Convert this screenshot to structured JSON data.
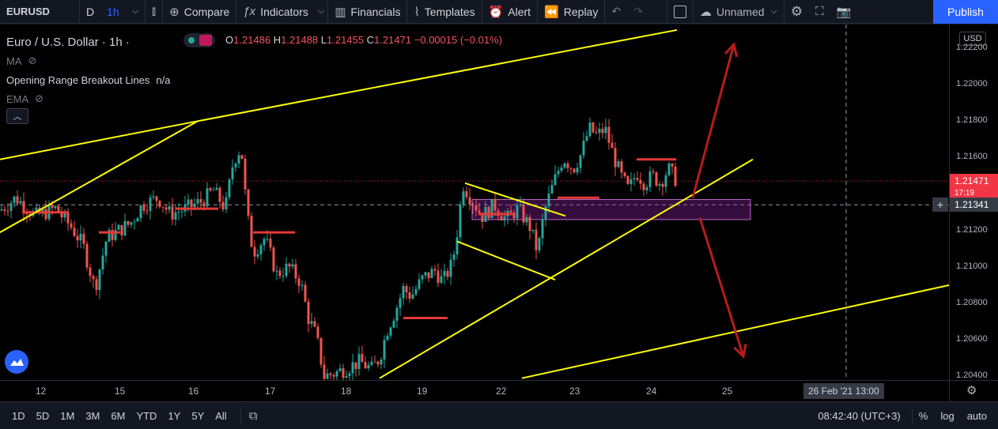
{
  "toolbar": {
    "symbol": "EURUSD",
    "interval_d": "D",
    "interval_1h": "1h",
    "compare": "Compare",
    "indicators": "Indicators",
    "financials": "Financials",
    "templates": "Templates",
    "alert": "Alert",
    "replay": "Replay",
    "layout_name": "Unnamed",
    "publish": "Publish"
  },
  "legend": {
    "title": "Euro / U.S. Dollar · 1h ·",
    "open_label": "O",
    "open": "1.21486",
    "high_label": "H",
    "high": "1.21488",
    "low_label": "L",
    "low": "1.21455",
    "close_label": "C",
    "close": "1.21471",
    "change": "−0.00015 (−0.01%)",
    "ma": "MA",
    "orb": "Opening Range Breakout Lines",
    "orb_value": "n/a",
    "ema": "EMA"
  },
  "price_axis": {
    "currency": "USD",
    "labels": [
      "1.22200",
      "1.22000",
      "1.21800",
      "1.21600",
      "1.21200",
      "1.21000",
      "1.20800",
      "1.20600",
      "1.20400"
    ],
    "current_price": "1.21471",
    "countdown": "17:19",
    "crosshair_price": "1.21341"
  },
  "time_axis": {
    "labels": [
      "12",
      "15",
      "16",
      "17",
      "18",
      "19",
      "22",
      "23",
      "24",
      "25"
    ],
    "crosshair_time": "26 Feb '21   13:00"
  },
  "bottombar": {
    "ranges": [
      "1D",
      "5D",
      "1M",
      "3M",
      "6M",
      "YTD",
      "1Y",
      "5Y",
      "All"
    ],
    "clock": "08:42:40 (UTC+3)",
    "percent": "%",
    "log": "log",
    "auto": "auto"
  },
  "colors": {
    "up": "#26a69a",
    "down": "#ef5350",
    "trendline": "#ffff00",
    "arrow": "#b71c1c",
    "level": "#e53935",
    "zone": "#9c27b0"
  },
  "chart_data": {
    "type": "candlestick",
    "symbol": "EURUSD",
    "ylim": [
      1.2038,
      1.2233
    ],
    "x_tick_labels": [
      "12",
      "15",
      "16",
      "17",
      "18",
      "19",
      "22",
      "23",
      "24",
      "25"
    ],
    "close_path": [
      [
        0,
        1.2131
      ],
      [
        20,
        1.2138
      ],
      [
        45,
        1.2128
      ],
      [
        70,
        1.2132
      ],
      [
        90,
        1.2122
      ],
      [
        105,
        1.2112
      ],
      [
        120,
        1.2088
      ],
      [
        135,
        1.2116
      ],
      [
        150,
        1.212
      ],
      [
        165,
        1.2124
      ],
      [
        180,
        1.2134
      ],
      [
        200,
        1.2138
      ],
      [
        215,
        1.2129
      ],
      [
        235,
        1.2132
      ],
      [
        255,
        1.2136
      ],
      [
        270,
        1.2142
      ],
      [
        285,
        1.2132
      ],
      [
        295,
        1.2158
      ],
      [
        305,
        1.2166
      ],
      [
        312,
        1.213
      ],
      [
        320,
        1.2108
      ],
      [
        335,
        1.2116
      ],
      [
        350,
        1.2096
      ],
      [
        365,
        1.21
      ],
      [
        380,
        1.2092
      ],
      [
        390,
        1.2072
      ],
      [
        400,
        1.2062
      ],
      [
        410,
        1.204
      ],
      [
        425,
        1.2042
      ],
      [
        440,
        1.2045
      ],
      [
        455,
        1.2048
      ],
      [
        470,
        1.2044
      ],
      [
        480,
        1.205
      ],
      [
        490,
        1.2066
      ],
      [
        500,
        1.2076
      ],
      [
        510,
        1.2088
      ],
      [
        520,
        1.2084
      ],
      [
        535,
        1.2094
      ],
      [
        550,
        1.2098
      ],
      [
        560,
        1.2092
      ],
      [
        572,
        1.2102
      ],
      [
        580,
        1.2125
      ],
      [
        585,
        1.2146
      ],
      [
        595,
        1.2138
      ],
      [
        610,
        1.2128
      ],
      [
        625,
        1.2134
      ],
      [
        640,
        1.2126
      ],
      [
        655,
        1.2132
      ],
      [
        670,
        1.2122
      ],
      [
        680,
        1.2108
      ],
      [
        688,
        1.213
      ],
      [
        700,
        1.2146
      ],
      [
        712,
        1.216
      ],
      [
        725,
        1.2154
      ],
      [
        735,
        1.2162
      ],
      [
        745,
        1.2176
      ],
      [
        755,
        1.2172
      ],
      [
        765,
        1.2176
      ],
      [
        775,
        1.2162
      ],
      [
        785,
        1.215
      ],
      [
        795,
        1.2142
      ],
      [
        805,
        1.2152
      ],
      [
        815,
        1.2146
      ],
      [
        825,
        1.215
      ],
      [
        835,
        1.2146
      ],
      [
        845,
        1.2154
      ],
      [
        856,
        1.2147
      ]
    ],
    "annotations": {
      "trendlines": [
        {
          "points": [
            [
              0,
              1.2159
            ],
            [
              250,
              1.218
            ],
            [
              856,
              1.223
            ]
          ]
        },
        {
          "points": [
            [
              0,
              1.2119
            ],
            [
              250,
              1.218
            ]
          ]
        },
        {
          "points": [
            [
              588,
              1.2146
            ],
            [
              715,
              1.2128
            ]
          ]
        },
        {
          "points": [
            [
              578,
              1.2114
            ],
            [
              702,
              1.2093
            ]
          ]
        },
        {
          "points": [
            [
              480,
              1.2039
            ],
            [
              952,
              1.2159
            ]
          ]
        },
        {
          "points": [
            [
              660,
              1.2039
            ],
            [
              1200,
              1.209
            ]
          ]
        }
      ],
      "levels": [
        {
          "x": [
            28,
            86
          ],
          "y": 1.213
        },
        {
          "x": [
            125,
            152
          ],
          "y": 1.2119
        },
        {
          "x": [
            222,
            276
          ],
          "y": 1.2132
        },
        {
          "x": [
            320,
            373
          ],
          "y": 1.2119
        },
        {
          "x": [
            510,
            566
          ],
          "y": 1.2072
        },
        {
          "x": [
            605,
            650
          ],
          "y": 1.2129
        },
        {
          "x": [
            705,
            758
          ],
          "y": 1.2138
        },
        {
          "x": [
            805,
            855
          ],
          "y": 1.2159
        }
      ],
      "zone": {
        "x": [
          597,
          949
        ],
        "y": [
          1.2137,
          1.2126
        ]
      },
      "arrows": [
        {
          "from": [
            876,
            1.2138
          ],
          "to": [
            928,
            1.2222
          ]
        },
        {
          "from": [
            885,
            1.2127
          ],
          "to": [
            940,
            1.2051
          ]
        }
      ],
      "crosshair": {
        "x": 1070,
        "y": 1.21341
      },
      "current_price": 1.21471
    }
  }
}
